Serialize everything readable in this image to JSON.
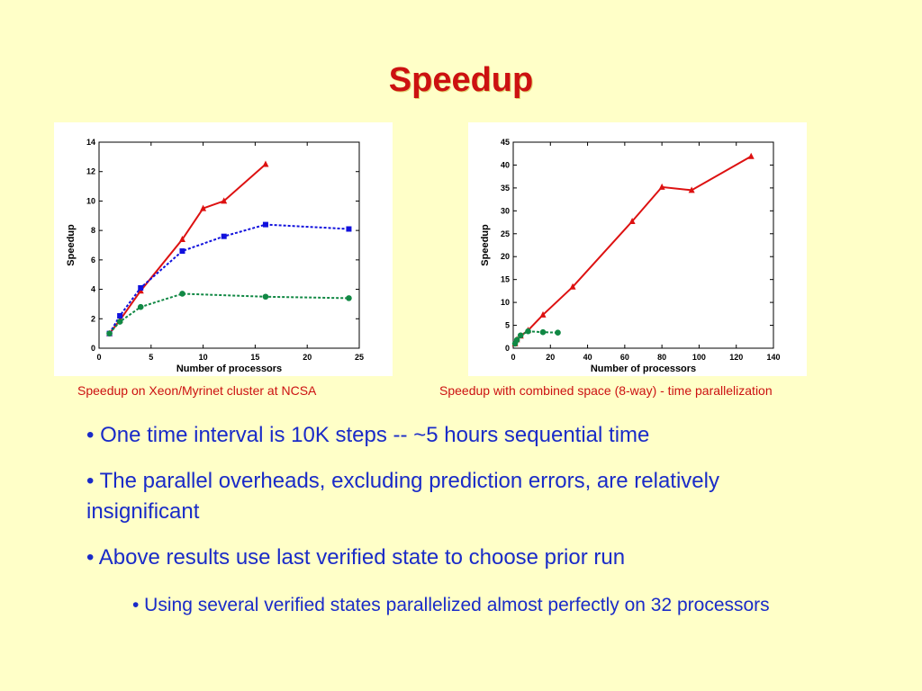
{
  "slide": {
    "title": "Speedup"
  },
  "captions": [
    "Speedup on Xeon/Myrinet cluster at NCSA",
    "Speedup with combined space (8-way) - time parallelization"
  ],
  "bullets": [
    "• One time interval is 10K steps -- ~5 hours sequential time",
    "• The parallel overheads, excluding prediction errors, are relatively insignificant",
    "• Above results use last verified state to choose prior run",
    "• Using several verified states parallelized almost perfectly on 32 processors"
  ],
  "colors": {
    "title": "#cc1111",
    "caption": "#cc1111",
    "bullet": "#1a2bc8",
    "background": "#ffffc8"
  },
  "chart_data": [
    {
      "type": "line",
      "xlabel": "Number of processors",
      "ylabel": "Speedup",
      "xlim": [
        0,
        25
      ],
      "ylim": [
        0,
        14
      ],
      "xticks": [
        0,
        5,
        10,
        15,
        20,
        25
      ],
      "yticks": [
        0,
        2,
        4,
        6,
        8,
        10,
        12,
        14
      ],
      "grid": false,
      "series": [
        {
          "color": "#dd1111",
          "style": "solid",
          "marker": "triangle",
          "x": [
            1,
            2,
            4,
            8,
            10,
            12,
            16
          ],
          "y": [
            1,
            1.9,
            3.9,
            7.4,
            9.5,
            10.0,
            12.5
          ]
        },
        {
          "color": "#1111dd",
          "style": "dotted",
          "marker": "square",
          "x": [
            1,
            2,
            4,
            8,
            12,
            16,
            24
          ],
          "y": [
            1,
            2.2,
            4.1,
            6.6,
            7.6,
            8.4,
            8.1
          ]
        },
        {
          "color": "#118844",
          "style": "dotted",
          "marker": "circle",
          "x": [
            1,
            2,
            4,
            8,
            16,
            24
          ],
          "y": [
            1,
            1.8,
            2.8,
            3.7,
            3.5,
            3.4
          ]
        }
      ]
    },
    {
      "type": "line",
      "xlabel": "Number of processors",
      "ylabel": "Speedup",
      "xlim": [
        0,
        140
      ],
      "ylim": [
        0,
        45
      ],
      "xticks": [
        0,
        20,
        40,
        60,
        80,
        100,
        120,
        140
      ],
      "yticks": [
        0,
        5,
        10,
        15,
        20,
        25,
        30,
        35,
        40,
        45
      ],
      "grid": false,
      "series": [
        {
          "color": "#dd1111",
          "style": "solid",
          "marker": "triangle",
          "x": [
            1,
            2,
            4,
            8,
            16,
            32,
            64,
            80,
            96,
            128
          ],
          "y": [
            1,
            1.9,
            2.7,
            3.9,
            7.3,
            13.4,
            27.7,
            35.2,
            34.5,
            41.9
          ]
        },
        {
          "color": "#118844",
          "style": "dotted",
          "marker": "circle",
          "x": [
            1,
            2,
            4,
            8,
            16,
            24
          ],
          "y": [
            1,
            1.8,
            2.8,
            3.7,
            3.5,
            3.4
          ]
        }
      ]
    }
  ]
}
